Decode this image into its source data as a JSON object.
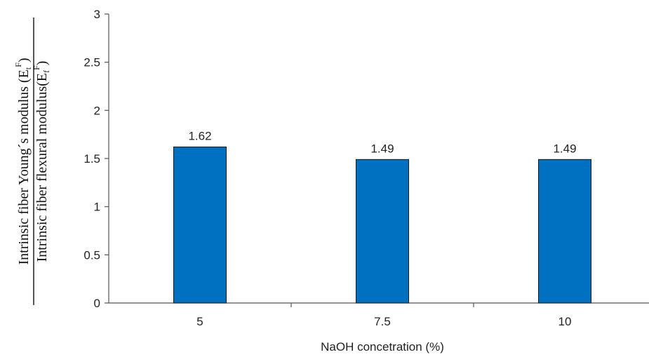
{
  "chart_data": {
    "type": "bar",
    "categories": [
      "5",
      "7.5",
      "10"
    ],
    "values": [
      1.62,
      1.49,
      1.49
    ],
    "data_labels": [
      "1.62",
      "1.49",
      "1.49"
    ],
    "xlabel": "NaOH concetration (%)",
    "ylabel": {
      "numerator": "Intrinsic fiber Young´s modulus (E",
      "numerator_sub": "t",
      "numerator_sup": "F",
      "denominator": "Intrinsic fiber flexural modulus(E",
      "denominator_sub": "f",
      "denominator_sup": "F"
    },
    "ylim": [
      0,
      3
    ],
    "yticks": [
      "0",
      "0.5",
      "1",
      "1.5",
      "2",
      "2.5",
      "3"
    ],
    "grid": false,
    "legend": "none",
    "bar_color": "#0070c0",
    "bar_edge_color": "#1a1a1a"
  }
}
